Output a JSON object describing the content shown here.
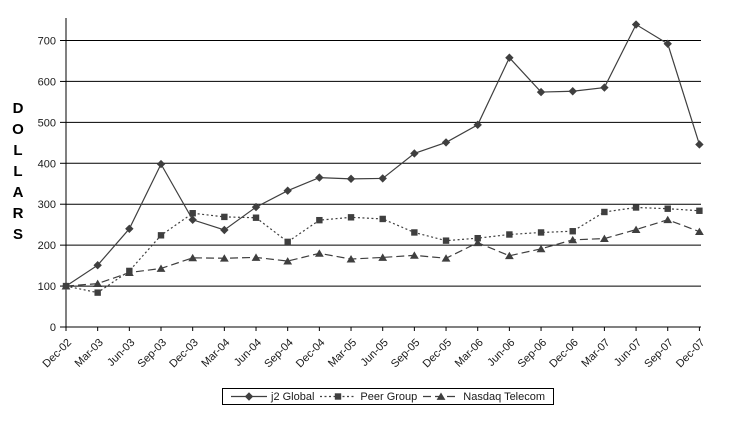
{
  "chart_data": {
    "type": "line",
    "title": "",
    "ylabel": "DOLLARS",
    "xlabel": "",
    "ylim": [
      0,
      760
    ],
    "y_ticks": [
      0,
      100,
      200,
      300,
      400,
      500,
      600,
      700
    ],
    "grid": "horizontal-gridlines-black",
    "legend_position": "bottom-center-boxed",
    "axis_color": "#000000",
    "background": "#ffffff",
    "categories": [
      "Dec-02",
      "Mar-03",
      "Jun-03",
      "Sep-03",
      "Dec-03",
      "Mar-04",
      "Jun-04",
      "Sep-04",
      "Dec-04",
      "Mar-05",
      "Jun-05",
      "Sep-05",
      "Dec-05",
      "Mar-06",
      "Jun-06",
      "Sep-06",
      "Dec-06",
      "Mar-07",
      "Jun-07",
      "Sep-07",
      "Dec-07"
    ],
    "series": [
      {
        "name": "j2 Global",
        "marker": "diamond",
        "line_style": "solid",
        "color": "#3f3f3f",
        "values": [
          100,
          151,
          240,
          398,
          262,
          237,
          293,
          333,
          365,
          362,
          363,
          424,
          451,
          494,
          658,
          574,
          576,
          585,
          739,
          692,
          446
        ]
      },
      {
        "name": "Peer Group",
        "marker": "square",
        "line_style": "dotted",
        "color": "#3f3f3f",
        "values": [
          100,
          84,
          137,
          224,
          278,
          269,
          267,
          208,
          261,
          268,
          264,
          231,
          211,
          217,
          226,
          231,
          234,
          281,
          292,
          289,
          284
        ]
      },
      {
        "name": "Nasdaq Telecom",
        "marker": "triangle",
        "line_style": "dashed",
        "color": "#3f3f3f",
        "values": [
          100,
          106,
          133,
          143,
          169,
          168,
          170,
          161,
          180,
          166,
          170,
          175,
          168,
          206,
          174,
          191,
          213,
          216,
          238,
          262,
          233
        ]
      }
    ]
  }
}
